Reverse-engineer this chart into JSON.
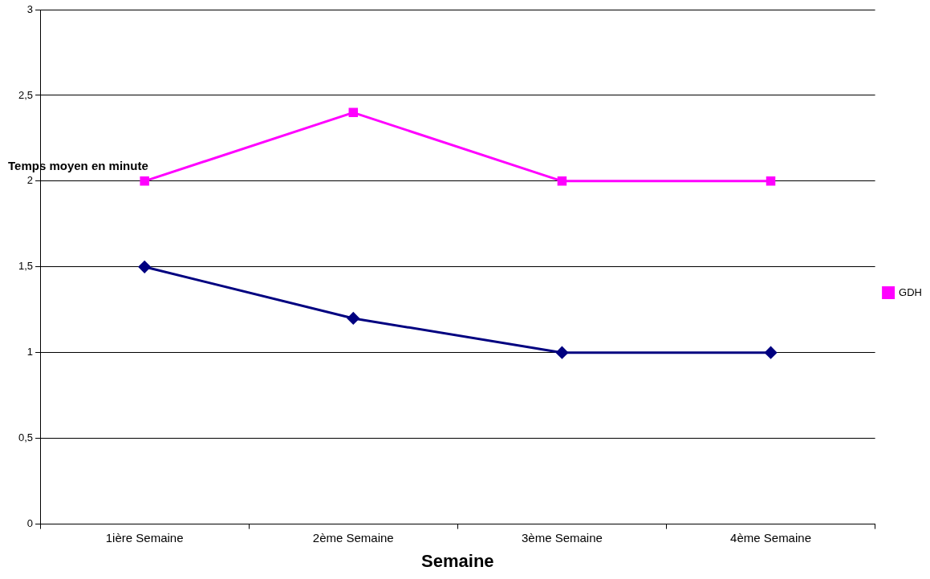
{
  "chart_data": {
    "type": "line",
    "xlabel": "Semaine",
    "ylabel": "Temps moyen en minute",
    "categories": [
      "1ière Semaine",
      "2ème Semaine",
      "3ème Semaine",
      "4ème Semaine"
    ],
    "series": [
      {
        "color": "#000080",
        "marker": "diamond",
        "values": [
          1.5,
          1.2,
          1,
          1
        ]
      },
      {
        "name": "GDH",
        "color": "#ff00ff",
        "marker": "square",
        "values": [
          2,
          2.4,
          2,
          2
        ]
      }
    ],
    "ylim": [
      0,
      3
    ],
    "yticks": [
      0,
      {
        "value": 0.5,
        "label": "0,5"
      },
      1,
      {
        "value": 1.5,
        "label": "1,5"
      },
      2,
      {
        "value": 2.5,
        "label": "2,5"
      },
      3
    ],
    "grid": "y",
    "legend": "right",
    "line_style": "solid"
  }
}
